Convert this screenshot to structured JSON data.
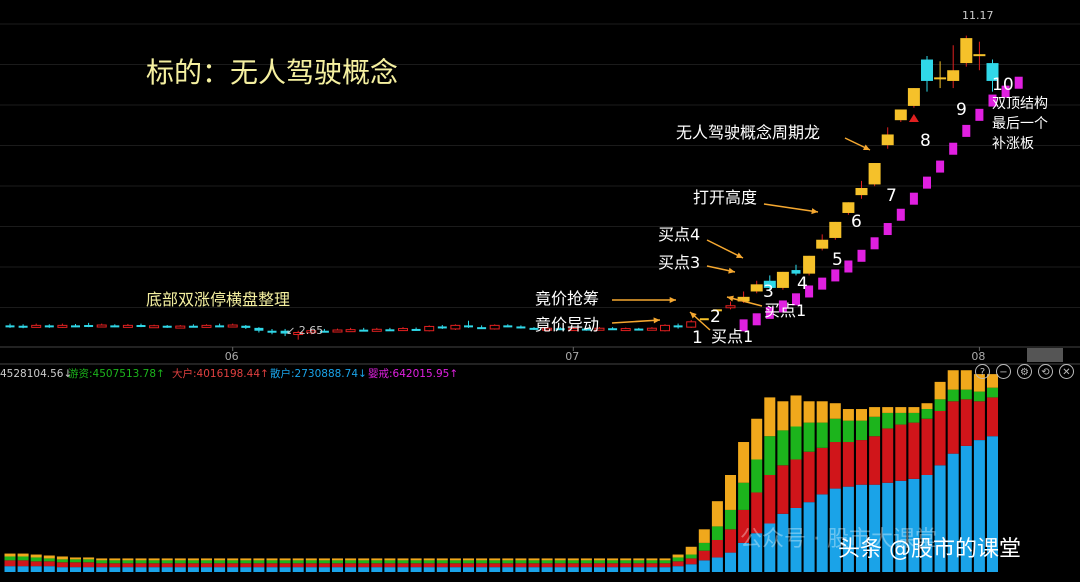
{
  "chart_data": [
    {
      "type": "candlestick",
      "title": "标的：无人驾驶概念",
      "x_ticks": [
        "06",
        "07",
        "08"
      ],
      "ylim": [
        2.5,
        12.0
      ],
      "price_labels": {
        "high": "11.17",
        "low": "2.65"
      },
      "candles": [
        {
          "o": 3.05,
          "c": 3.02,
          "h": 3.1,
          "l": 2.98
        },
        {
          "o": 3.04,
          "c": 3.0,
          "h": 3.08,
          "l": 2.97
        },
        {
          "o": 3.02,
          "c": 3.05,
          "h": 3.1,
          "l": 3.0
        },
        {
          "o": 3.05,
          "c": 3.01,
          "h": 3.08,
          "l": 2.98
        },
        {
          "o": 3.0,
          "c": 3.05,
          "h": 3.1,
          "l": 2.98
        },
        {
          "o": 3.05,
          "c": 3.02,
          "h": 3.09,
          "l": 3.0
        },
        {
          "o": 3.06,
          "c": 3.03,
          "h": 3.12,
          "l": 3.0
        },
        {
          "o": 3.03,
          "c": 3.06,
          "h": 3.1,
          "l": 3.01
        },
        {
          "o": 3.05,
          "c": 3.03,
          "h": 3.08,
          "l": 3.0
        },
        {
          "o": 3.03,
          "c": 3.05,
          "h": 3.09,
          "l": 3.01
        },
        {
          "o": 3.06,
          "c": 3.02,
          "h": 3.1,
          "l": 3.0
        },
        {
          "o": 3.02,
          "c": 3.04,
          "h": 3.07,
          "l": 3.0
        },
        {
          "o": 3.04,
          "c": 3.01,
          "h": 3.06,
          "l": 2.98
        },
        {
          "o": 3.0,
          "c": 3.03,
          "h": 3.06,
          "l": 2.98
        },
        {
          "o": 3.04,
          "c": 3.02,
          "h": 3.08,
          "l": 3.0
        },
        {
          "o": 3.02,
          "c": 3.05,
          "h": 3.08,
          "l": 3.0
        },
        {
          "o": 3.05,
          "c": 3.02,
          "h": 3.1,
          "l": 3.0
        },
        {
          "o": 3.03,
          "c": 3.06,
          "h": 3.1,
          "l": 3.01
        },
        {
          "o": 3.04,
          "c": 2.98,
          "h": 3.06,
          "l": 2.95
        },
        {
          "o": 2.98,
          "c": 2.9,
          "h": 3.0,
          "l": 2.85
        },
        {
          "o": 2.9,
          "c": 2.85,
          "h": 2.95,
          "l": 2.8
        },
        {
          "o": 2.9,
          "c": 2.82,
          "h": 2.95,
          "l": 2.75
        },
        {
          "o": 2.82,
          "c": 2.85,
          "h": 2.9,
          "l": 2.65
        },
        {
          "o": 2.86,
          "c": 2.9,
          "h": 2.95,
          "l": 2.8
        },
        {
          "o": 2.9,
          "c": 2.88,
          "h": 2.95,
          "l": 2.85
        },
        {
          "o": 2.88,
          "c": 2.92,
          "h": 2.96,
          "l": 2.86
        },
        {
          "o": 2.9,
          "c": 2.93,
          "h": 2.98,
          "l": 2.88
        },
        {
          "o": 2.93,
          "c": 2.9,
          "h": 2.98,
          "l": 2.88
        },
        {
          "o": 2.9,
          "c": 2.94,
          "h": 2.98,
          "l": 2.88
        },
        {
          "o": 2.94,
          "c": 2.92,
          "h": 2.98,
          "l": 2.9
        },
        {
          "o": 2.92,
          "c": 2.96,
          "h": 3.0,
          "l": 2.9
        },
        {
          "o": 2.95,
          "c": 2.93,
          "h": 2.99,
          "l": 2.9
        },
        {
          "o": 2.9,
          "c": 3.02,
          "h": 3.05,
          "l": 2.88
        },
        {
          "o": 3.02,
          "c": 2.98,
          "h": 3.06,
          "l": 2.95
        },
        {
          "o": 2.95,
          "c": 3.05,
          "h": 3.08,
          "l": 2.92
        },
        {
          "o": 3.05,
          "c": 3.0,
          "h": 3.18,
          "l": 2.98
        },
        {
          "o": 3.0,
          "c": 2.98,
          "h": 3.05,
          "l": 2.95
        },
        {
          "o": 2.95,
          "c": 3.05,
          "h": 3.08,
          "l": 2.93
        },
        {
          "o": 3.05,
          "c": 3.02,
          "h": 3.08,
          "l": 3.0
        },
        {
          "o": 3.02,
          "c": 3.0,
          "h": 3.05,
          "l": 2.96
        },
        {
          "o": 2.98,
          "c": 2.96,
          "h": 3.0,
          "l": 2.92
        },
        {
          "o": 2.95,
          "c": 2.97,
          "h": 3.0,
          "l": 2.93
        },
        {
          "o": 2.97,
          "c": 2.95,
          "h": 3.0,
          "l": 2.92
        },
        {
          "o": 2.94,
          "c": 2.96,
          "h": 2.99,
          "l": 2.92
        },
        {
          "o": 2.96,
          "c": 2.94,
          "h": 2.98,
          "l": 2.9
        },
        {
          "o": 2.94,
          "c": 2.97,
          "h": 3.0,
          "l": 2.92
        },
        {
          "o": 2.97,
          "c": 2.95,
          "h": 3.0,
          "l": 2.93
        },
        {
          "o": 2.95,
          "c": 2.96,
          "h": 2.99,
          "l": 2.92
        },
        {
          "o": 2.96,
          "c": 2.94,
          "h": 2.98,
          "l": 2.92
        },
        {
          "o": 2.94,
          "c": 2.97,
          "h": 3.0,
          "l": 2.92
        },
        {
          "o": 2.9,
          "c": 3.05,
          "h": 3.08,
          "l": 2.88
        },
        {
          "o": 3.05,
          "c": 3.0,
          "h": 3.1,
          "l": 2.96
        },
        {
          "o": 3.0,
          "c": 3.15,
          "h": 3.2,
          "l": 2.98
        },
        {
          "o": 3.25,
          "c": 3.25,
          "h": 3.25,
          "l": 3.25
        },
        {
          "o": 3.5,
          "c": 3.5,
          "h": 3.5,
          "l": 3.5
        },
        {
          "o": 3.55,
          "c": 3.6,
          "h": 3.72,
          "l": 3.5
        },
        {
          "o": 3.72,
          "c": 3.85,
          "h": 4.0,
          "l": 3.68
        },
        {
          "o": 4.0,
          "c": 4.2,
          "h": 4.3,
          "l": 3.95
        },
        {
          "o": 4.3,
          "c": 4.1,
          "h": 4.45,
          "l": 4.05
        },
        {
          "o": 4.1,
          "c": 4.55,
          "h": 4.55,
          "l": 4.05
        },
        {
          "o": 4.6,
          "c": 4.5,
          "h": 4.75,
          "l": 4.45
        },
        {
          "o": 4.5,
          "c": 5.0,
          "h": 5.0,
          "l": 4.45
        },
        {
          "o": 5.2,
          "c": 5.45,
          "h": 5.6,
          "l": 5.15
        },
        {
          "o": 5.5,
          "c": 5.95,
          "h": 5.95,
          "l": 5.45
        },
        {
          "o": 6.2,
          "c": 6.5,
          "h": 6.5,
          "l": 6.15
        },
        {
          "o": 6.7,
          "c": 6.9,
          "h": 7.1,
          "l": 6.6
        },
        {
          "o": 7.0,
          "c": 7.6,
          "h": 7.6,
          "l": 6.95
        },
        {
          "o": 8.1,
          "c": 8.4,
          "h": 8.6,
          "l": 8.0
        },
        {
          "o": 8.8,
          "c": 9.1,
          "h": 9.1,
          "l": 8.75
        },
        {
          "o": 9.2,
          "c": 9.7,
          "h": 9.7,
          "l": 9.15
        },
        {
          "o": 10.5,
          "c": 9.9,
          "h": 10.6,
          "l": 9.6
        },
        {
          "o": 10.0,
          "c": 10.0,
          "h": 10.45,
          "l": 9.7
        },
        {
          "o": 9.9,
          "c": 10.2,
          "h": 10.9,
          "l": 9.7
        },
        {
          "o": 10.4,
          "c": 11.1,
          "h": 11.17,
          "l": 10.3
        },
        {
          "o": 10.6,
          "c": 10.65,
          "h": 11.0,
          "l": 10.2
        },
        {
          "o": 10.4,
          "c": 9.9,
          "h": 10.5,
          "l": 9.6
        }
      ],
      "sar": [
        {
          "i": 56,
          "v": 3.05
        },
        {
          "i": 57,
          "v": 3.22
        },
        {
          "i": 58,
          "v": 3.4
        },
        {
          "i": 59,
          "v": 3.58
        },
        {
          "i": 60,
          "v": 3.78
        },
        {
          "i": 61,
          "v": 4.0
        },
        {
          "i": 62,
          "v": 4.22
        },
        {
          "i": 63,
          "v": 4.45
        },
        {
          "i": 64,
          "v": 4.7
        },
        {
          "i": 65,
          "v": 5.0
        },
        {
          "i": 66,
          "v": 5.35
        },
        {
          "i": 67,
          "v": 5.75
        },
        {
          "i": 68,
          "v": 6.15
        },
        {
          "i": 69,
          "v": 6.6
        },
        {
          "i": 70,
          "v": 7.05
        },
        {
          "i": 71,
          "v": 7.5
        },
        {
          "i": 72,
          "v": 8.0
        },
        {
          "i": 73,
          "v": 8.5
        },
        {
          "i": 74,
          "v": 8.95
        },
        {
          "i": 75,
          "v": 9.35
        },
        {
          "i": 76,
          "v": 9.6
        },
        {
          "i": 77,
          "v": 9.85
        }
      ],
      "annotations": [
        "底部双涨停横盘整理",
        "竟价抢筹",
        "竟价异动",
        "买点1",
        "买点1",
        "买点3",
        "买点4",
        "打开高度",
        "无人驾驶概念周期龙",
        "双顶结构\n最后一个\n补涨板"
      ],
      "board_numbers": [
        "1",
        "2",
        "3",
        "4",
        "5",
        "6",
        "7",
        "8",
        "9",
        "10"
      ]
    },
    {
      "type": "stacked_bar",
      "legend_text": {
        "total": "4528104.56",
        "youzi": "游资:4507513.78",
        "dahu": "大户:4016198.44",
        "sanhu": "散户:2730888.74",
        "qita": "婴戒:642015.95"
      },
      "series": [
        {
          "name": "游资",
          "color": "#1aa3e8"
        },
        {
          "name": "大户",
          "color": "#d0151a"
        },
        {
          "name": "散户",
          "color": "#1cb41c"
        },
        {
          "name": "婴戒",
          "color": "#f0a81c"
        }
      ],
      "stacks": [
        [
          6,
          6,
          4,
          3
        ],
        [
          6,
          6,
          4,
          3
        ],
        [
          6,
          5,
          4,
          3
        ],
        [
          6,
          5,
          3,
          3
        ],
        [
          5,
          5,
          3,
          3
        ],
        [
          5,
          5,
          3,
          2
        ],
        [
          5,
          5,
          3,
          2
        ],
        [
          5,
          4,
          3,
          2
        ],
        [
          5,
          4,
          3,
          2
        ],
        [
          5,
          4,
          3,
          2
        ],
        [
          5,
          4,
          3,
          2
        ],
        [
          5,
          4,
          3,
          2
        ],
        [
          5,
          4,
          3,
          2
        ],
        [
          5,
          4,
          3,
          2
        ],
        [
          5,
          4,
          3,
          2
        ],
        [
          5,
          4,
          3,
          2
        ],
        [
          5,
          4,
          3,
          2
        ],
        [
          5,
          4,
          3,
          2
        ],
        [
          5,
          4,
          3,
          2
        ],
        [
          5,
          4,
          3,
          2
        ],
        [
          5,
          4,
          3,
          2
        ],
        [
          5,
          4,
          3,
          2
        ],
        [
          5,
          4,
          3,
          2
        ],
        [
          5,
          4,
          3,
          2
        ],
        [
          5,
          4,
          3,
          2
        ],
        [
          5,
          4,
          3,
          2
        ],
        [
          5,
          4,
          3,
          2
        ],
        [
          5,
          4,
          3,
          2
        ],
        [
          5,
          4,
          3,
          2
        ],
        [
          5,
          4,
          3,
          2
        ],
        [
          5,
          4,
          3,
          2
        ],
        [
          5,
          4,
          3,
          2
        ],
        [
          5,
          4,
          3,
          2
        ],
        [
          5,
          4,
          3,
          2
        ],
        [
          5,
          4,
          3,
          2
        ],
        [
          5,
          4,
          3,
          2
        ],
        [
          5,
          4,
          3,
          2
        ],
        [
          5,
          4,
          3,
          2
        ],
        [
          5,
          4,
          3,
          2
        ],
        [
          5,
          4,
          3,
          2
        ],
        [
          5,
          4,
          3,
          2
        ],
        [
          5,
          4,
          3,
          2
        ],
        [
          5,
          4,
          3,
          2
        ],
        [
          5,
          4,
          3,
          2
        ],
        [
          5,
          4,
          3,
          2
        ],
        [
          5,
          4,
          3,
          2
        ],
        [
          5,
          4,
          3,
          2
        ],
        [
          5,
          4,
          3,
          2
        ],
        [
          5,
          4,
          3,
          2
        ],
        [
          5,
          4,
          3,
          2
        ],
        [
          5,
          4,
          3,
          2
        ],
        [
          6,
          5,
          4,
          3
        ],
        [
          8,
          6,
          4,
          8
        ],
        [
          12,
          10,
          8,
          14
        ],
        [
          15,
          18,
          14,
          26
        ],
        [
          20,
          24,
          20,
          36
        ],
        [
          30,
          34,
          28,
          42
        ],
        [
          40,
          42,
          34,
          42
        ],
        [
          50,
          50,
          40,
          40
        ],
        [
          60,
          50,
          36,
          30
        ],
        [
          66,
          50,
          34,
          32
        ],
        [
          72,
          52,
          30,
          22
        ],
        [
          80,
          48,
          26,
          22
        ],
        [
          86,
          48,
          24,
          16
        ],
        [
          88,
          46,
          22,
          12
        ],
        [
          90,
          46,
          20,
          12
        ],
        [
          90,
          50,
          20,
          10
        ],
        [
          92,
          56,
          16,
          6
        ],
        [
          94,
          58,
          12,
          6
        ],
        [
          96,
          58,
          10,
          6
        ],
        [
          100,
          58,
          10,
          6
        ],
        [
          110,
          56,
          12,
          18
        ],
        [
          122,
          54,
          12,
          20
        ],
        [
          130,
          48,
          10,
          20
        ],
        [
          136,
          40,
          10,
          18
        ],
        [
          140,
          40,
          10,
          14
        ]
      ]
    }
  ],
  "watermark": {
    "line1": "公众号 · 股市大课堂",
    "line2": "头条 @股市的课堂"
  },
  "toolbar": {
    "help": "?",
    "zoom": "−",
    "settings": "⚙",
    "refresh": "⟲",
    "close": "✕"
  }
}
